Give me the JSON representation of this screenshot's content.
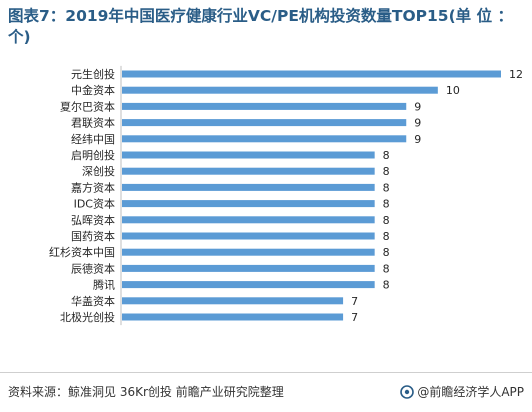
{
  "header": {
    "title": "图表7：2019年中国医疗健康行业VC/PE机构投资数量TOP15(单 位 ：个)"
  },
  "footer": {
    "source": "资料来源：鲸准洞见 36Kr创投 前瞻产业研究院整理",
    "brand": "@前瞻经济学人APP"
  },
  "chart_data": {
    "type": "bar",
    "orientation": "horizontal",
    "title": "图表7：2019年中国医疗健康行业VC/PE机构投资数量TOP15(单 位 ：个)",
    "categories": [
      "元生创投",
      "中金资本",
      "夏尔巴资本",
      "君联资本",
      "经纬中国",
      "启明创投",
      "深创投",
      "嘉方资本",
      "IDC资本",
      "弘晖资本",
      "国药资本",
      "红杉资本中国",
      "辰德资本",
      "腾讯",
      "华盖资本",
      "北极光创投"
    ],
    "values": [
      12,
      10,
      9,
      9,
      9,
      8,
      8,
      8,
      8,
      8,
      8,
      8,
      8,
      8,
      7,
      7
    ],
    "xlim": [
      0,
      12
    ],
    "bar_color": "#5b9bd5",
    "data_labels": true,
    "grid": false,
    "legend": "none"
  }
}
